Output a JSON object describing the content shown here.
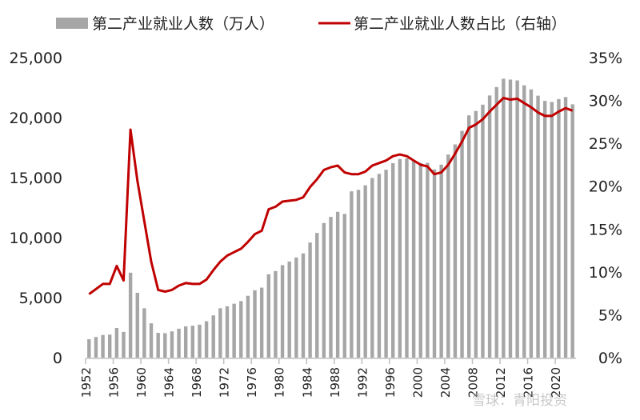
{
  "chart_data": {
    "type": "bar+line",
    "x": [
      1952,
      1953,
      1954,
      1955,
      1956,
      1957,
      1958,
      1959,
      1960,
      1961,
      1962,
      1963,
      1964,
      1965,
      1966,
      1967,
      1968,
      1969,
      1970,
      1971,
      1972,
      1973,
      1974,
      1975,
      1976,
      1977,
      1978,
      1979,
      1980,
      1981,
      1982,
      1983,
      1984,
      1985,
      1986,
      1987,
      1988,
      1989,
      1990,
      1991,
      1992,
      1993,
      1994,
      1995,
      1996,
      1997,
      1998,
      1999,
      2000,
      2001,
      2002,
      2003,
      2004,
      2005,
      2006,
      2007,
      2008,
      2009,
      2010,
      2011,
      2012,
      2013,
      2014,
      2015,
      2016,
      2017,
      2018,
      2019,
      2020,
      2021,
      2022
    ],
    "series": [
      {
        "name": "第二产业就业人数（万人）",
        "type": "bar",
        "axis": "left",
        "color": "#a6a6a6",
        "values": [
          1531,
          1715,
          1882,
          1913,
          2468,
          2142,
          7076,
          5402,
          4112,
          2856,
          2059,
          2038,
          2183,
          2408,
          2600,
          2661,
          2743,
          3030,
          3518,
          4112,
          4276,
          4492,
          4712,
          5152,
          5611,
          5831,
          6945,
          7214,
          7707,
          8003,
          8346,
          8679,
          9590,
          10384,
          11216,
          11726,
          12152,
          11976,
          13856,
          13980,
          14355,
          14965,
          15312,
          15655,
          16203,
          16547,
          16600,
          16421,
          16219,
          16234,
          15682,
          16077,
          16920,
          17766,
          18894,
          20186,
          20553,
          21080,
          21842,
          22544,
          23241,
          23170,
          23099,
          22693,
          22350,
          21824,
          21390,
          21305,
          21543,
          21712,
          21105
        ]
      },
      {
        "name": "第二产业就业人数占比（右轴）",
        "type": "line",
        "axis": "right",
        "color": "#c00000",
        "values": [
          7.4,
          8.0,
          8.6,
          8.6,
          10.7,
          9.0,
          26.6,
          20.6,
          15.9,
          11.2,
          7.9,
          7.7,
          7.9,
          8.4,
          8.7,
          8.6,
          8.6,
          9.1,
          10.2,
          11.2,
          11.9,
          12.3,
          12.7,
          13.5,
          14.4,
          14.8,
          17.3,
          17.6,
          18.2,
          18.3,
          18.4,
          18.7,
          19.9,
          20.8,
          21.9,
          22.2,
          22.4,
          21.6,
          21.4,
          21.4,
          21.7,
          22.4,
          22.7,
          23.0,
          23.5,
          23.7,
          23.5,
          23.0,
          22.5,
          22.3,
          21.4,
          21.6,
          22.5,
          23.8,
          25.2,
          26.8,
          27.2,
          27.8,
          28.7,
          29.5,
          30.3,
          30.1,
          30.2,
          29.7,
          29.2,
          28.6,
          28.2,
          28.2,
          28.7,
          29.1,
          28.8
        ]
      }
    ],
    "left_axis": {
      "ylim": [
        0,
        25000
      ],
      "ticks": [
        "0",
        "5,000",
        "10,000",
        "15,000",
        "20,000",
        "25,000"
      ]
    },
    "right_axis": {
      "ylim": [
        0,
        35
      ],
      "ticks": [
        "0%",
        "5%",
        "10%",
        "15%",
        "20%",
        "25%",
        "30%",
        "35%"
      ]
    },
    "x_ticks": [
      "1952",
      "1956",
      "1960",
      "1964",
      "1968",
      "1972",
      "1976",
      "1980",
      "1984",
      "1988",
      "1992",
      "1996",
      "2000",
      "2004",
      "2008",
      "2012",
      "2016",
      "2020"
    ],
    "legend": "top",
    "grid": false
  },
  "watermark": "雪球：青阳投资"
}
